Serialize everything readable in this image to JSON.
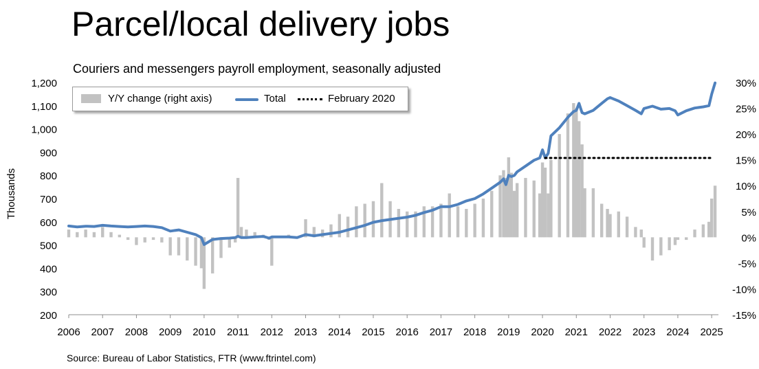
{
  "title": "Parcel/local delivery jobs",
  "subtitle": "Couriers and messengers payroll employment, seasonally adjusted",
  "source": "Source: Bureau of Labor Statistics, FTR (www.ftrintel.com)",
  "chart_data": {
    "type": "bar+line",
    "ylabel": "Thousands",
    "ylim": [
      200,
      1200
    ],
    "yticks": [
      "200",
      "300",
      "400",
      "500",
      "600",
      "700",
      "800",
      "900",
      "1,000",
      "1,100",
      "1,200"
    ],
    "y2lim": [
      -15,
      30
    ],
    "y2ticks": [
      "-15%",
      "-10%",
      "-5%",
      "0%",
      "5%",
      "10%",
      "15%",
      "20%",
      "25%",
      "30%"
    ],
    "xlim": [
      2006,
      2025.2
    ],
    "xticks": [
      "2006",
      "2007",
      "2008",
      "2009",
      "2010",
      "2011",
      "2012",
      "2013",
      "2014",
      "2015",
      "2016",
      "2017",
      "2018",
      "2019",
      "2020",
      "2021",
      "2022",
      "2023",
      "2024",
      "2025"
    ],
    "grid": false,
    "legend": {
      "position": "top-left",
      "entries": [
        "Y/Y change (right axis)",
        "Total",
        "February 2020"
      ]
    },
    "colors": {
      "total": "#4f81bd",
      "yoy": "#c2c2c2",
      "feb2020": "#000000"
    },
    "series": [
      {
        "name": "Total",
        "axis": "left",
        "x": [
          2006.0,
          2006.25,
          2006.5,
          2006.75,
          2007.0,
          2007.25,
          2007.5,
          2007.75,
          2008.0,
          2008.25,
          2008.5,
          2008.75,
          2009.0,
          2009.25,
          2009.5,
          2009.75,
          2009.92,
          2010.0,
          2010.25,
          2010.5,
          2010.75,
          2010.92,
          2011.0,
          2011.1,
          2011.25,
          2011.5,
          2011.75,
          2011.92,
          2012.0,
          2012.25,
          2012.5,
          2012.75,
          2013.0,
          2013.25,
          2013.5,
          2013.75,
          2014.0,
          2014.25,
          2014.5,
          2014.75,
          2015.0,
          2015.25,
          2015.5,
          2015.75,
          2016.0,
          2016.25,
          2016.5,
          2016.75,
          2017.0,
          2017.25,
          2017.5,
          2017.75,
          2018.0,
          2018.25,
          2018.5,
          2018.75,
          2018.85,
          2018.92,
          2019.0,
          2019.08,
          2019.17,
          2019.25,
          2019.5,
          2019.75,
          2019.92,
          2020.0,
          2020.08,
          2020.17,
          2020.25,
          2020.5,
          2020.75,
          2020.92,
          2021.0,
          2021.08,
          2021.17,
          2021.25,
          2021.5,
          2021.75,
          2021.92,
          2022.0,
          2022.25,
          2022.5,
          2022.75,
          2022.92,
          2023.0,
          2023.25,
          2023.5,
          2023.75,
          2023.92,
          2024.0,
          2024.25,
          2024.5,
          2024.75,
          2024.92,
          2025.0,
          2025.1
        ],
        "values": [
          582,
          578,
          581,
          580,
          585,
          582,
          580,
          578,
          580,
          582,
          580,
          575,
          560,
          565,
          555,
          545,
          532,
          502,
          524,
          528,
          530,
          532,
          538,
          532,
          532,
          535,
          537,
          530,
          535,
          535,
          535,
          532,
          545,
          540,
          545,
          550,
          555,
          565,
          575,
          585,
          598,
          605,
          610,
          615,
          620,
          628,
          640,
          650,
          665,
          665,
          675,
          690,
          700,
          720,
          745,
          770,
          785,
          760,
          800,
          795,
          800,
          815,
          840,
          865,
          875,
          910,
          875,
          895,
          970,
          1005,
          1050,
          1075,
          1080,
          1110,
          1070,
          1065,
          1080,
          1110,
          1130,
          1135,
          1120,
          1100,
          1080,
          1065,
          1088,
          1098,
          1085,
          1088,
          1078,
          1060,
          1078,
          1090,
          1095,
          1100,
          1150,
          1198
        ]
      },
      {
        "name": "Y/Y change (right axis)",
        "axis": "right",
        "x": [
          2006.0,
          2006.25,
          2006.5,
          2006.75,
          2007.0,
          2007.25,
          2007.5,
          2007.75,
          2008.0,
          2008.25,
          2008.5,
          2008.75,
          2009.0,
          2009.25,
          2009.5,
          2009.75,
          2009.92,
          2010.0,
          2010.25,
          2010.5,
          2010.75,
          2010.92,
          2011.0,
          2011.1,
          2011.25,
          2011.5,
          2011.75,
          2011.92,
          2012.0,
          2012.25,
          2012.5,
          2012.75,
          2013.0,
          2013.25,
          2013.5,
          2013.75,
          2014.0,
          2014.25,
          2014.5,
          2014.75,
          2015.0,
          2015.25,
          2015.5,
          2015.75,
          2016.0,
          2016.25,
          2016.5,
          2016.75,
          2017.0,
          2017.25,
          2017.5,
          2017.75,
          2018.0,
          2018.25,
          2018.5,
          2018.75,
          2018.85,
          2018.92,
          2019.0,
          2019.08,
          2019.17,
          2019.25,
          2019.5,
          2019.75,
          2019.92,
          2020.0,
          2020.08,
          2020.17,
          2020.25,
          2020.5,
          2020.75,
          2020.92,
          2021.0,
          2021.08,
          2021.17,
          2021.25,
          2021.5,
          2021.75,
          2021.92,
          2022.0,
          2022.25,
          2022.5,
          2022.75,
          2022.92,
          2023.0,
          2023.25,
          2023.5,
          2023.75,
          2023.92,
          2024.0,
          2024.25,
          2024.5,
          2024.75,
          2024.92,
          2025.0,
          2025.1
        ],
        "values": [
          1.5,
          1.0,
          1.5,
          1.0,
          2.0,
          1.0,
          0.5,
          -0.5,
          -1.5,
          -1.0,
          -0.5,
          -1.0,
          -3.5,
          -3.5,
          -4.5,
          -5.5,
          -6.0,
          -10.0,
          -7.0,
          -4.0,
          -2.0,
          -1.0,
          11.5,
          2.0,
          1.5,
          1.0,
          0.5,
          -0.5,
          -5.5,
          0.0,
          0.5,
          0.0,
          3.5,
          2.0,
          1.5,
          2.5,
          4.5,
          4.0,
          6.0,
          6.5,
          7.0,
          10.5,
          7.0,
          5.5,
          5.0,
          5.0,
          6.0,
          6.0,
          6.5,
          8.5,
          6.0,
          5.5,
          6.5,
          7.5,
          9.0,
          12.0,
          13.0,
          11.5,
          15.5,
          12.5,
          9.0,
          10.5,
          11.5,
          11.0,
          8.5,
          14.5,
          13.5,
          8.5,
          15.0,
          20.0,
          24.0,
          26.0,
          25.0,
          22.5,
          18.0,
          9.5,
          9.5,
          6.5,
          5.5,
          4.5,
          5.0,
          4.0,
          2.0,
          1.5,
          -2.0,
          -4.5,
          -3.5,
          -2.5,
          -1.5,
          -0.5,
          -0.5,
          1.5,
          2.5,
          3.0,
          7.5,
          10.0
        ]
      },
      {
        "name": "February 2020",
        "axis": "left",
        "x": [
          2020.08,
          2025.0
        ],
        "values": [
          875,
          875
        ]
      }
    ]
  }
}
